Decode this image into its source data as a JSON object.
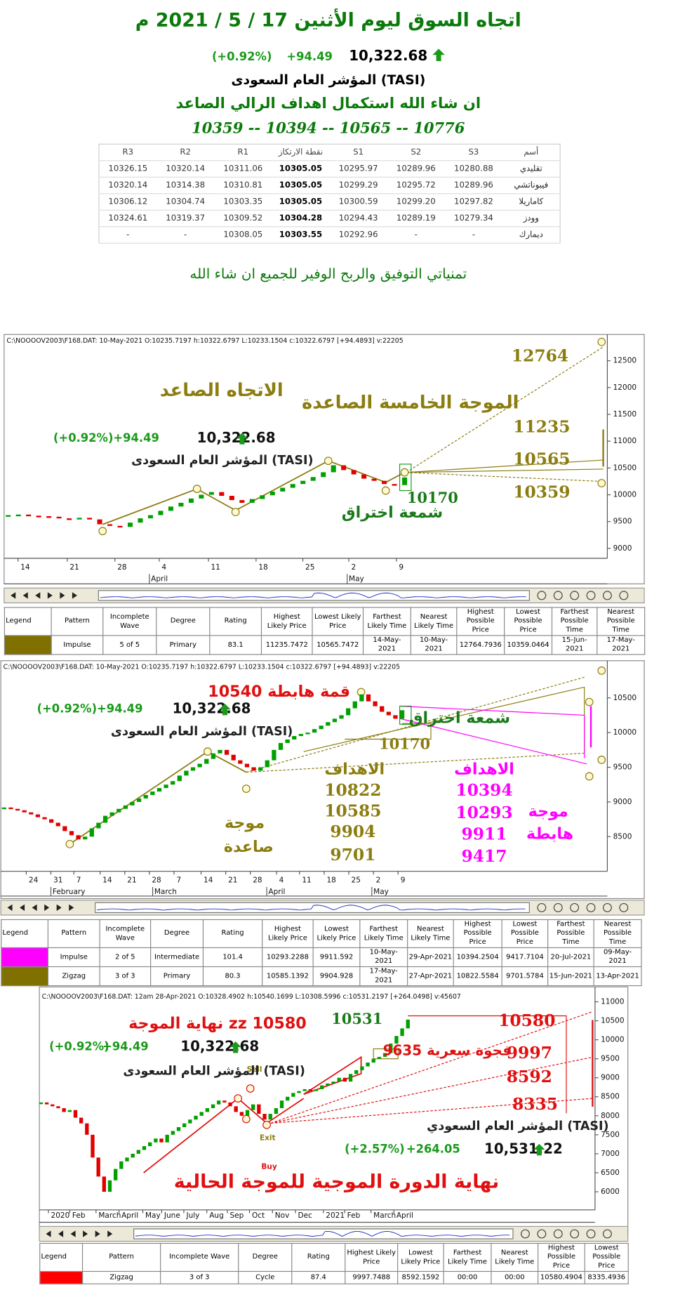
{
  "header": {
    "title": "اتجاه السوق ليوم الأثنين 17 / 5 / 2021 م",
    "index_value": "10,322.68",
    "index_change": "+94.49",
    "index_change_pct": "(+0.92%)",
    "index_name": "المؤشر العام السعودى (TASI)",
    "outlook": "ان شاء الله استكمال اهداف الرالي الصاعد",
    "targets": "10359 -- 10394 -- 10565 -- 10776"
  },
  "pivot_table": {
    "columns": [
      "أسم",
      "S3",
      "S2",
      "S1",
      "نقطة الارتكاز",
      "R1",
      "R2",
      "R3"
    ],
    "rows": [
      [
        "تقليدي",
        "10280.88",
        "10289.96",
        "10295.97",
        "10305.05",
        "10311.06",
        "10320.14",
        "10326.15"
      ],
      [
        "فيبوناتشي",
        "10289.96",
        "10295.72",
        "10299.29",
        "10305.05",
        "10310.81",
        "10314.38",
        "10320.14"
      ],
      [
        "كاماريلا",
        "10297.82",
        "10299.20",
        "10300.59",
        "10305.05",
        "10303.35",
        "10304.74",
        "10306.12"
      ],
      [
        "وودز",
        "10279.34",
        "10289.19",
        "10294.43",
        "10304.28",
        "10309.52",
        "10319.37",
        "10324.61"
      ],
      [
        "ديمارك",
        "-",
        "-",
        "10292.96",
        "10303.55",
        "10308.05",
        "-",
        "-"
      ]
    ]
  },
  "closing_note": "تمنياتي التوفيق والربح الوفير للجميع ان شاء الله",
  "chart_data": [
    {
      "type": "candlestick",
      "info_line": "C:\\NOOOOV2003\\F168.DAT:  10-May-2021  O:10235.7197 h:10322.6797 L:10233.1504 c:10322.6797 [+94.4893] v:22205",
      "up_color": "#00a000",
      "down_color": "#e00000",
      "ylim": [
        8830,
        12990
      ],
      "yticks": [
        9000,
        9500,
        10000,
        10500,
        11000,
        11500,
        12000,
        12500
      ],
      "x_labels": [
        "14",
        "21",
        "28",
        "4",
        "11",
        "18",
        "25",
        "2",
        "9"
      ],
      "x_months": [
        "April",
        "May"
      ],
      "closes": [
        9620,
        9630,
        9610,
        9600,
        9590,
        9560,
        9550,
        9570,
        9540,
        9450,
        9420,
        9400,
        9480,
        9560,
        9620,
        9700,
        9780,
        9850,
        9930,
        10000,
        10050,
        9980,
        9900,
        9850,
        9920,
        9990,
        10060,
        10130,
        10200,
        10260,
        10330,
        10420,
        10550,
        10460,
        10380,
        10300,
        10260,
        10200,
        10180,
        10322
      ],
      "annotations": [
        "12764",
        "الاتجاه الصاعد",
        "الموجة الخامسة الصاعدة",
        "11235",
        "10565",
        "10359",
        "10170",
        "شمعة اختراق"
      ],
      "wave_table": {
        "columns": [
          "Legend",
          "Pattern",
          "Incomplete Wave",
          "Degree",
          "Rating",
          "Highest Likely Price",
          "Lowest Likely Price",
          "Farthest Likely Time",
          "Nearest Likely Time",
          "Highest Possible Price",
          "Lowest Possible Price",
          "Farthest Possible Time",
          "Nearest Possible Time"
        ],
        "rows": [
          {
            "color": "#807000",
            "cells": [
              "Impulse",
              "5 of 5",
              "Primary",
              "83.1",
              "11235.7472",
              "10565.7472",
              "14-May-2021",
              "10-May-2021",
              "12764.7936",
              "10359.0464",
              "15-Jun-2021",
              "17-May-2021"
            ]
          }
        ]
      }
    },
    {
      "type": "candlestick",
      "info_line": "C:\\NOOOOV2003\\F168.DAT:  10-May-2021  O:10235.7197 h:10322.6797 L:10233.1504 c:10322.6797 [+94.4893] v:22205",
      "up_color": "#00a000",
      "down_color": "#e00000",
      "ylim": [
        8000,
        11036
      ],
      "yticks": [
        8500,
        9000,
        9500,
        10000,
        10500
      ],
      "x_labels": [
        "24",
        "31",
        "7",
        "14",
        "21",
        "28",
        "7",
        "14",
        "21",
        "28",
        "4",
        "11",
        "18",
        "25",
        "2",
        "9"
      ],
      "x_months": [
        "February",
        "March",
        "April",
        "May"
      ],
      "closes": [
        8920,
        8900,
        8880,
        8850,
        8820,
        8780,
        8750,
        8700,
        8650,
        8580,
        8520,
        8460,
        8500,
        8620,
        8700,
        8800,
        8850,
        8900,
        8950,
        9000,
        9050,
        9100,
        9150,
        9200,
        9250,
        9300,
        9380,
        9450,
        9500,
        9550,
        9620,
        9700,
        9750,
        9680,
        9600,
        9550,
        9500,
        9450,
        9500,
        9600,
        9750,
        9850,
        9900,
        9950,
        9980,
        10000,
        10050,
        10100,
        10150,
        10200,
        10250,
        10350,
        10450,
        10550,
        10450,
        10380,
        10300,
        10250,
        10200,
        10322
      ],
      "annotations": [
        "10540 قمة هابطة",
        "شمعة اختراق",
        "10170",
        "الاهداف",
        "10822",
        "10585",
        "9904",
        "9701",
        "موجة",
        "صاعدة",
        "الاهداف",
        "10394",
        "10293",
        "9911",
        "9417",
        "موجة",
        "هابطة"
      ],
      "wave_table": {
        "columns": [
          "Legend",
          "Pattern",
          "Incomplete Wave",
          "Degree",
          "Rating",
          "Highest Likely Price",
          "Lowest Likely Price",
          "Farthest Likely Time",
          "Nearest Likely Time",
          "Highest Possible Price",
          "Lowest Possible Price",
          "Farthest Possible Time",
          "Nearest Possible Time"
        ],
        "rows": [
          {
            "color": "#ff00ff",
            "cells": [
              "Impulse",
              "2 of 5",
              "Intermediate",
              "101.4",
              "10293.2288",
              "9911.592",
              "10-May-2021",
              "29-Apr-2021",
              "10394.2504",
              "9417.7104",
              "20-Jul-2021",
              "09-May-2021"
            ]
          },
          {
            "color": "#807000",
            "cells": [
              "Zigzag",
              "3 of 3",
              "Primary",
              "80.3",
              "10585.1392",
              "9904.928",
              "17-May-2021",
              "27-Apr-2021",
              "10822.5584",
              "9701.5784",
              "15-Jun-2021",
              "13-Apr-2021"
            ]
          }
        ]
      }
    },
    {
      "type": "candlestick",
      "info_line": "C:\\NOOOOV2003\\F168.DAT:  12am 28-Apr-2021  O:10328.4902 h:10540.1699 L:10308.5996 c:10531.2197 [+264.0498] v:45607",
      "up_color": "#00a000",
      "down_color": "#e00000",
      "ylim": [
        5522,
        11174
      ],
      "yticks": [
        6000,
        6500,
        7000,
        7500,
        8000,
        8500,
        9000,
        9500,
        10000,
        10500,
        11000
      ],
      "x_labels": [
        "2020",
        "Feb",
        "March",
        "April",
        "May",
        "June",
        "July",
        "Aug",
        "Sep",
        "Oct",
        "Nov",
        "Dec",
        "2021",
        "Feb",
        "March",
        "April"
      ],
      "closes": [
        8350,
        8300,
        8250,
        8200,
        8100,
        8150,
        7950,
        7800,
        7500,
        6900,
        6400,
        6000,
        6300,
        6600,
        6800,
        6900,
        7000,
        7100,
        7200,
        7300,
        7400,
        7300,
        7500,
        7600,
        7700,
        7800,
        7900,
        8000,
        8100,
        8200,
        8300,
        8400,
        8350,
        8250,
        8100,
        8000,
        8150,
        8300,
        8050,
        7900,
        8050,
        8200,
        8400,
        8500,
        8600,
        8650,
        8700,
        8650,
        8700,
        8800,
        8850,
        8900,
        9000,
        8900,
        9100,
        9200,
        9300,
        9400,
        9500,
        9550,
        9650,
        9900,
        10100,
        10300,
        10531
      ],
      "annotations": [
        "نهاية الموجة zz 10580",
        "10531",
        "9635 فجوة سعرية",
        "10580",
        "9997",
        "8592",
        "8335",
        "Sell",
        "Exit",
        "Buy",
        "نهاية الدورة الموجية للموجة الحالية"
      ],
      "index_box": {
        "index_name": "المؤشر العام السعودي (TASI)",
        "index_value": "10,531.22",
        "index_change": "+264.05",
        "index_change_pct": "(+2.57%)"
      },
      "wave_table": {
        "columns": [
          "Legend",
          "Pattern",
          "Incomplete Wave",
          "Degree",
          "Rating",
          "Highest Likely Price",
          "Lowest Likely Price",
          "Farthest Likely Time",
          "Nearest Likely Time",
          "Highest Possible Price",
          "Lowest Possible Price"
        ],
        "rows": [
          {
            "color": "#ff0000",
            "cells": [
              "Zigzag",
              "3 of 3",
              "Cycle",
              "87.4",
              "9997.7488",
              "8592.1592",
              "00:00",
              "00:00",
              "10580.4904",
              "8335.4936"
            ]
          }
        ]
      }
    }
  ]
}
